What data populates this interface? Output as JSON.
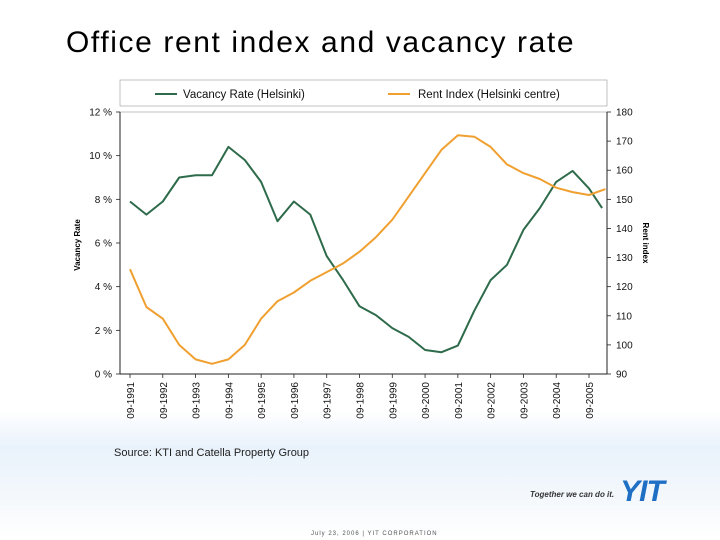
{
  "slide": {
    "title": "Office rent index and vacancy rate",
    "source": "Source: KTI and Catella Property Group",
    "logo_slogan": "Together we can do it.",
    "logo_text": "YIT",
    "footer_date": "July 23, 2006",
    "footer_sep": "|",
    "footer_company": "YIT CORPORATION"
  },
  "colors": {
    "vacancy": "#2e6b4a",
    "rent": "#f0a030",
    "logo": "#1f6fc5"
  },
  "chart_data": {
    "type": "line",
    "title": "",
    "legend_position": "top",
    "grid": false,
    "left_axis": {
      "label": "Vacancy Rate",
      "min": 0,
      "max": 12,
      "ticks": [
        "0 %",
        "2 %",
        "4 %",
        "6 %",
        "8 %",
        "10 %",
        "12 %"
      ]
    },
    "right_axis": {
      "label": "Rent index",
      "min": 90,
      "max": 180,
      "ticks": [
        "90",
        "100",
        "110",
        "120",
        "130",
        "140",
        "150",
        "160",
        "170",
        "180"
      ]
    },
    "x_labels": [
      "09-1991",
      "09-1992",
      "09-1993",
      "09-1994",
      "09-1995",
      "09-1996",
      "09-1997",
      "09-1998",
      "09-1999",
      "09-2000",
      "09-2001",
      "09-2002",
      "09-2003",
      "09-2004",
      "09-2005"
    ],
    "series": [
      {
        "name": "Vacancy Rate  (Helsinki)",
        "axis": "left",
        "x": [
          1991.0,
          1991.5,
          1992.0,
          1992.5,
          1993.0,
          1993.5,
          1994.0,
          1994.5,
          1995.0,
          1995.5,
          1996.0,
          1996.5,
          1997.0,
          1997.5,
          1998.0,
          1998.5,
          1999.0,
          1999.5,
          2000.0,
          2000.5,
          2001.0,
          2001.5,
          2002.0,
          2002.5,
          2003.0,
          2003.5,
          2004.0,
          2004.5,
          2005.0,
          2005.4
        ],
        "values": [
          7.9,
          7.3,
          7.9,
          9.0,
          9.1,
          9.1,
          10.4,
          9.8,
          8.8,
          7.0,
          7.9,
          7.3,
          5.4,
          4.3,
          3.1,
          2.7,
          2.1,
          1.7,
          1.1,
          1.0,
          1.3,
          2.9,
          4.3,
          5.0,
          6.6,
          7.6,
          8.8,
          9.3,
          8.5,
          7.6
        ]
      },
      {
        "name": "Rent Index (Helsinki centre)",
        "axis": "right",
        "x": [
          1991.0,
          1991.5,
          1992.0,
          1992.5,
          1993.0,
          1993.5,
          1994.0,
          1994.5,
          1995.0,
          1995.5,
          1996.0,
          1996.5,
          1997.0,
          1997.5,
          1998.0,
          1998.5,
          1999.0,
          1999.5,
          2000.0,
          2000.5,
          2001.0,
          2001.5,
          2002.0,
          2002.5,
          2003.0,
          2003.5,
          2004.0,
          2004.5,
          2005.0,
          2005.5
        ],
        "values": [
          126.0,
          113.0,
          109.0,
          100.0,
          95.0,
          93.5,
          95.0,
          100.0,
          109.0,
          115.0,
          118.0,
          122.0,
          125.0,
          128.0,
          132.0,
          137.0,
          143.0,
          151.0,
          159.0,
          167.0,
          172.0,
          171.5,
          168.0,
          162.0,
          159.0,
          157.0,
          154.0,
          152.5,
          151.5,
          153.5
        ]
      }
    ]
  }
}
